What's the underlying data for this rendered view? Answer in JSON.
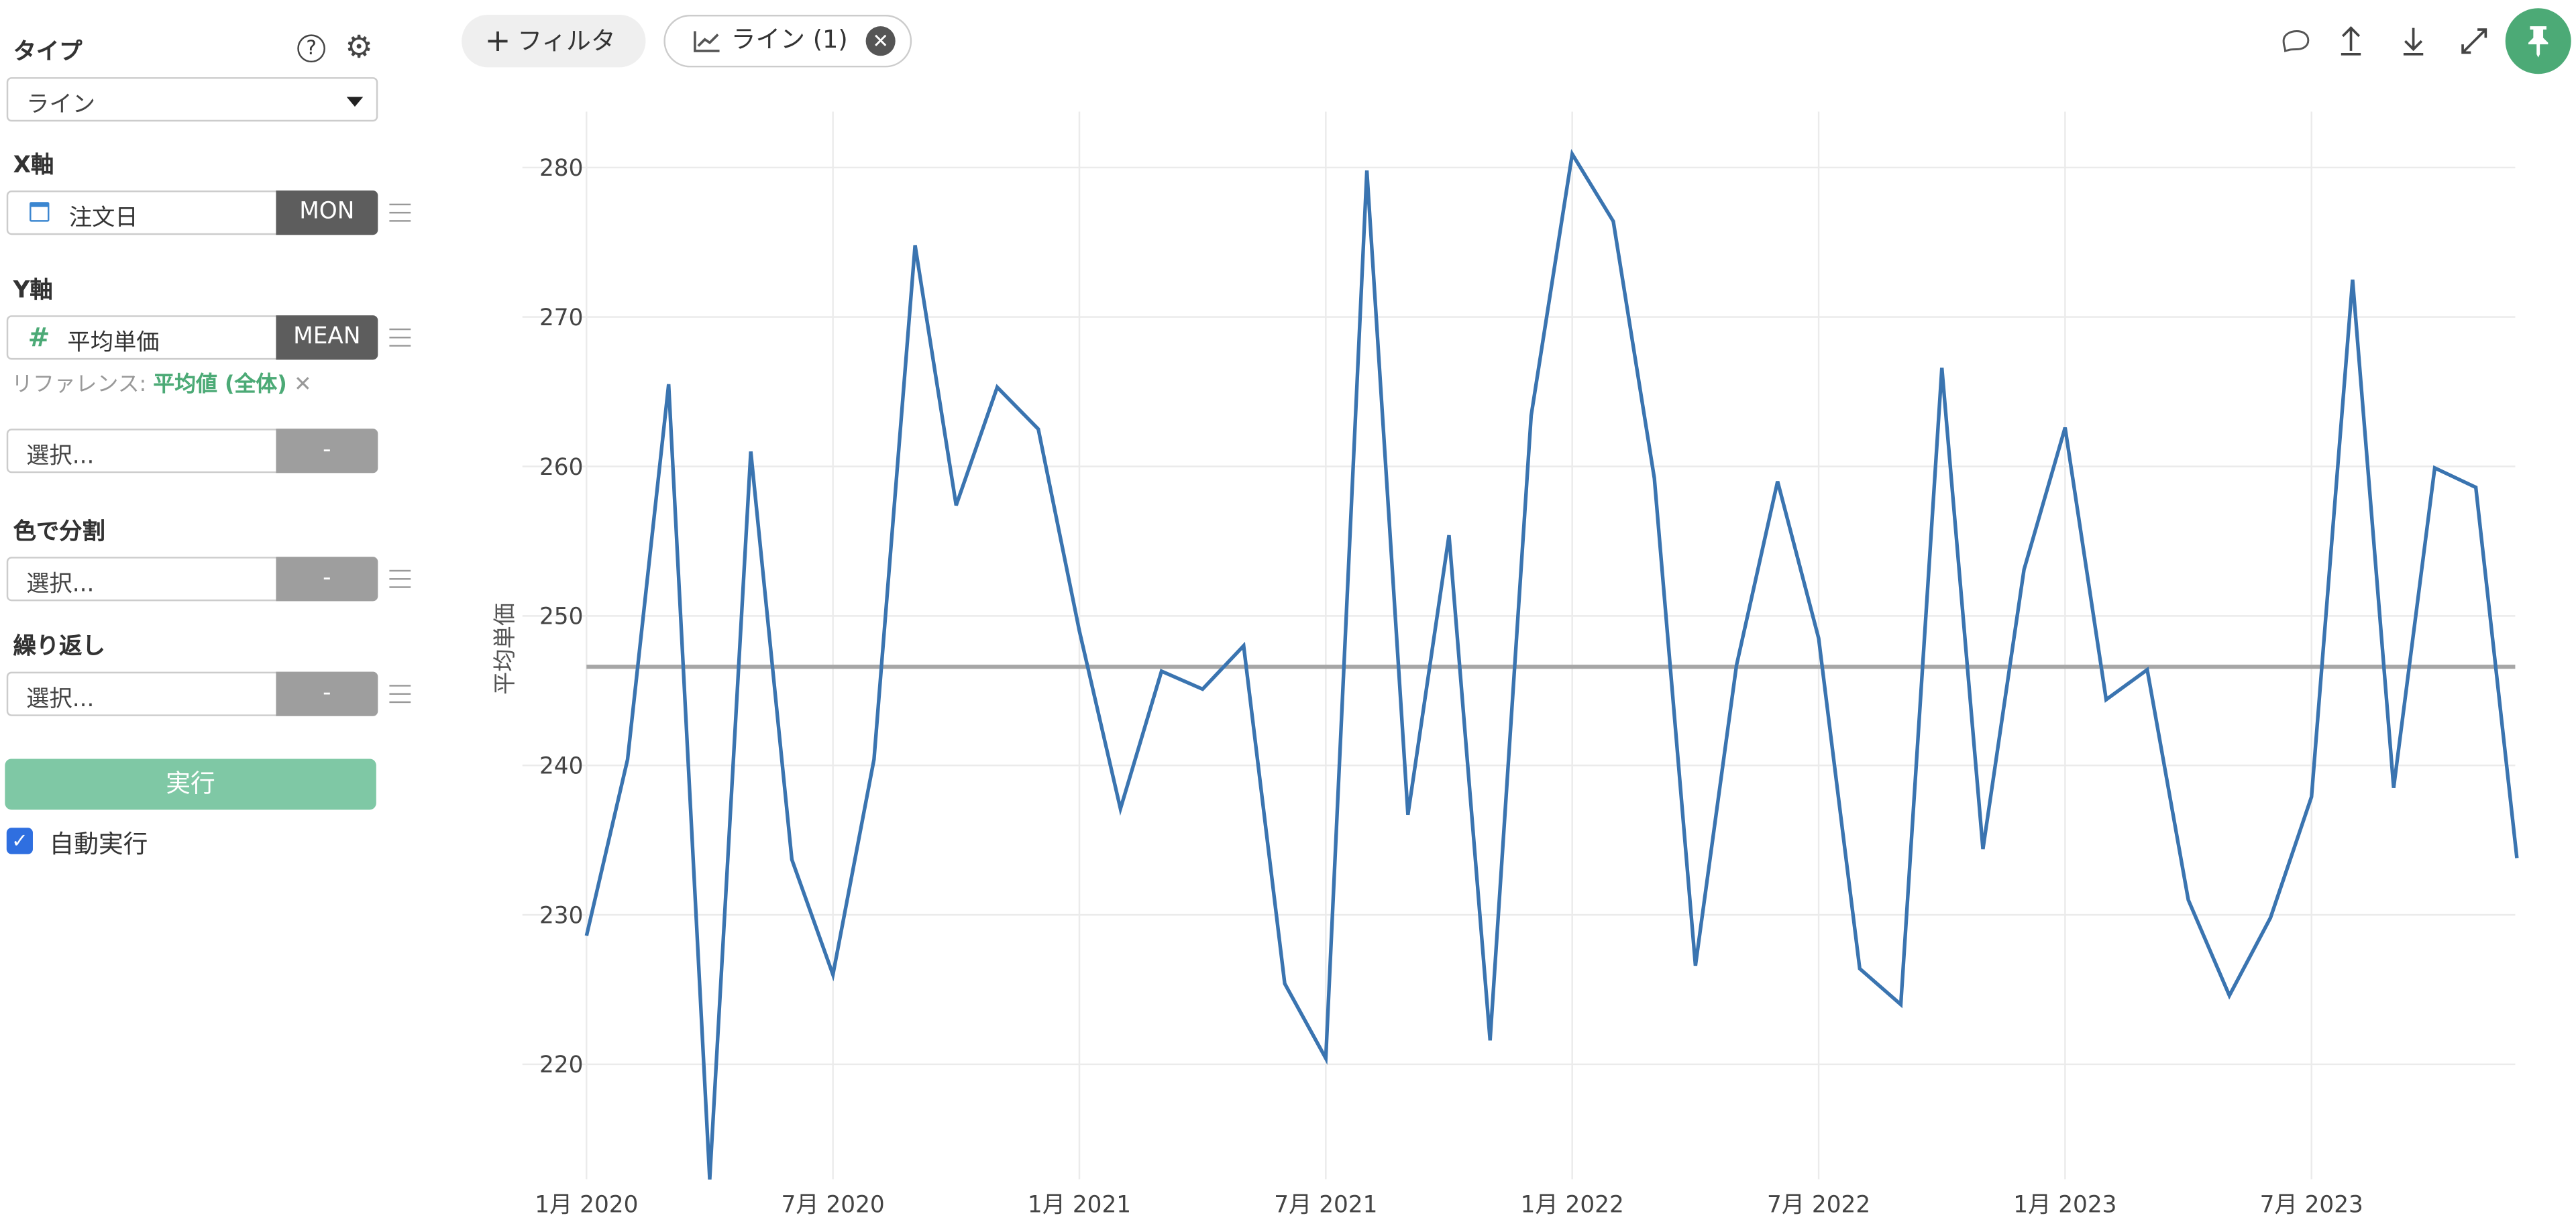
{
  "sidebar": {
    "type_label": "タイプ",
    "type_value": "ライン",
    "x_axis_label": "X軸",
    "x_field": "注文日",
    "x_agg": "MON",
    "y_axis_label": "Y軸",
    "y_field": "平均単価",
    "y_agg": "MEAN",
    "reference_prefix": "リファレンス:",
    "reference_value": "平均値 (全体)",
    "extra_select_placeholder": "選択...",
    "extra_select_agg": "-",
    "color_label": "色で分割",
    "color_placeholder": "選択...",
    "color_agg": "-",
    "repeat_label": "繰り返し",
    "repeat_placeholder": "選択...",
    "repeat_agg": "-",
    "run_button": "実行",
    "auto_run_label": "自動実行",
    "auto_run_checked": true
  },
  "toolbar": {
    "filter_button": "フィルタ",
    "chart_chip": "ライン (1)",
    "icons": [
      "comment-icon",
      "upload-icon",
      "download-icon",
      "expand-icon",
      "pin-icon"
    ]
  },
  "colors": {
    "line": "#3a74b0",
    "reference": "#a6a6a6",
    "accent": "#4caa76",
    "run_button": "#7fc8a5"
  },
  "chart_data": {
    "type": "line",
    "ylabel": "平均単価",
    "xlabel": "",
    "x_ticks": [
      "1月 2020",
      "7月 2020",
      "1月 2021",
      "7月 2021",
      "1月 2022",
      "7月 2022",
      "1月 2023",
      "7月 2023"
    ],
    "y_ticks": [
      220,
      230,
      240,
      250,
      260,
      270,
      280
    ],
    "ylim": [
      212,
      282
    ],
    "x_range": [
      "2020-01",
      "2023-12"
    ],
    "grid": true,
    "x": [
      "2020-01",
      "2020-02",
      "2020-03",
      "2020-04",
      "2020-05",
      "2020-06",
      "2020-07",
      "2020-08",
      "2020-09",
      "2020-10",
      "2020-11",
      "2020-12",
      "2021-01",
      "2021-02",
      "2021-03",
      "2021-04",
      "2021-05",
      "2021-06",
      "2021-07",
      "2021-08",
      "2021-09",
      "2021-10",
      "2021-11",
      "2021-12",
      "2022-01",
      "2022-02",
      "2022-03",
      "2022-04",
      "2022-05",
      "2022-06",
      "2022-07",
      "2022-08",
      "2022-09",
      "2022-10",
      "2022-11",
      "2022-12",
      "2023-01",
      "2023-02",
      "2023-03",
      "2023-04",
      "2023-05",
      "2023-06",
      "2023-07",
      "2023-08",
      "2023-09",
      "2023-10",
      "2023-11",
      "2023-12"
    ],
    "values": [
      228.6,
      240.4,
      265.5,
      212.3,
      261.0,
      233.7,
      226.0,
      240.4,
      274.8,
      257.4,
      265.3,
      262.5,
      249.0,
      237.1,
      246.3,
      245.1,
      248.0,
      225.4,
      220.4,
      279.8,
      236.7,
      255.4,
      221.6,
      263.4,
      280.9,
      276.4,
      259.2,
      226.6,
      246.7,
      259.0,
      248.5,
      226.4,
      224.0,
      266.6,
      234.4,
      253.1,
      262.6,
      244.4,
      246.4,
      231.0,
      224.6,
      229.8,
      237.9,
      272.5,
      238.5,
      259.9,
      258.6,
      233.8
    ],
    "reference_line": {
      "label": "平均値 (全体)",
      "value": 246.6
    }
  }
}
